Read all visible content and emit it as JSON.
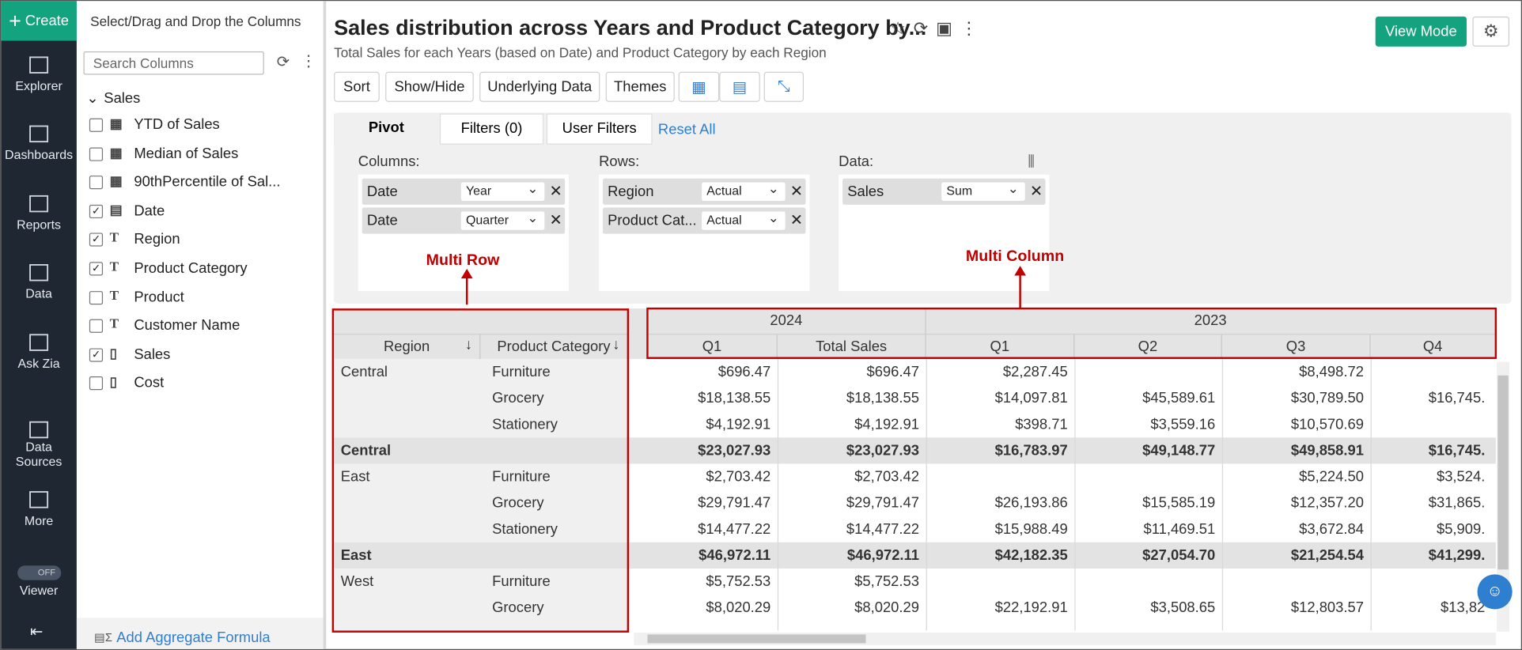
{
  "nav": {
    "create": "Create",
    "items": [
      "Explorer",
      "Dashboards",
      "Reports",
      "Data",
      "Ask Zia",
      "Data Sources",
      "More"
    ],
    "toggle": "OFF",
    "viewer": "Viewer"
  },
  "columns_panel": {
    "title": "Select/Drag and Drop the Columns",
    "search": "Search Columns",
    "group": "Sales",
    "columns": [
      {
        "label": "YTD of Sales",
        "checked": false,
        "kind": "measure"
      },
      {
        "label": "Median of Sales",
        "checked": false,
        "kind": "measure"
      },
      {
        "label": "90thPercentile of Sal...",
        "checked": false,
        "kind": "measure"
      },
      {
        "label": "Date",
        "checked": true,
        "kind": "date"
      },
      {
        "label": "Region",
        "checked": true,
        "kind": "text"
      },
      {
        "label": "Product Category",
        "checked": true,
        "kind": "text"
      },
      {
        "label": "Product",
        "checked": false,
        "kind": "text"
      },
      {
        "label": "Customer Name",
        "checked": false,
        "kind": "text"
      },
      {
        "label": "Sales",
        "checked": true,
        "kind": "number"
      },
      {
        "label": "Cost",
        "checked": false,
        "kind": "number"
      }
    ],
    "footer": "Add Aggregate Formula"
  },
  "header": {
    "title": "Sales distribution across Years and Product Category by...",
    "subtitle": "Total Sales for each Years (based on Date) and Product Category by each Region",
    "view_mode": "View Mode"
  },
  "toolbar": [
    "Sort",
    "Show/Hide",
    "Underlying Data",
    "Themes"
  ],
  "tabs": {
    "pivot": "Pivot",
    "filters": "Filters  (0)",
    "user_filters": "User Filters",
    "reset": "Reset All"
  },
  "shelves": [
    {
      "label": "Columns:",
      "items": [
        {
          "field": "Date",
          "option": "Year"
        },
        {
          "field": "Date",
          "option": "Quarter"
        }
      ]
    },
    {
      "label": "Rows:",
      "items": [
        {
          "field": "Region",
          "option": "Actual"
        },
        {
          "field": "Product Cat...",
          "option": "Actual"
        }
      ]
    },
    {
      "label": "Data:",
      "items": [
        {
          "field": "Sales",
          "option": "Sum"
        }
      ]
    }
  ],
  "annotations": {
    "multi_row": "Multi Row",
    "multi_column": "Multi Column"
  },
  "table": {
    "years": [
      "2024",
      "2023"
    ],
    "headers": [
      "Region",
      "Product Category",
      "Q1",
      "Total Sales",
      "Q1",
      "Q2",
      "Q3",
      "Q4"
    ],
    "rows": [
      {
        "region": "Central",
        "category": "Furniture",
        "cells": [
          "$696.47",
          "$696.47",
          "$2,287.45",
          null,
          "$8,498.72",
          null
        ],
        "subtotal": false
      },
      {
        "region": null,
        "category": "Grocery",
        "cells": [
          "$18,138.55",
          "$18,138.55",
          "$14,097.81",
          "$45,589.61",
          "$30,789.50",
          "$16,745."
        ],
        "subtotal": false
      },
      {
        "region": null,
        "category": "Stationery",
        "cells": [
          "$4,192.91",
          "$4,192.91",
          "$398.71",
          "$3,559.16",
          "$10,570.69",
          null
        ],
        "subtotal": false
      },
      {
        "region": "Central",
        "category": null,
        "cells": [
          "$23,027.93",
          "$23,027.93",
          "$16,783.97",
          "$49,148.77",
          "$49,858.91",
          "$16,745."
        ],
        "subtotal": true
      },
      {
        "region": "East",
        "category": "Furniture",
        "cells": [
          "$2,703.42",
          "$2,703.42",
          null,
          null,
          "$5,224.50",
          "$3,524."
        ],
        "subtotal": false
      },
      {
        "region": null,
        "category": "Grocery",
        "cells": [
          "$29,791.47",
          "$29,791.47",
          "$26,193.86",
          "$15,585.19",
          "$12,357.20",
          "$31,865."
        ],
        "subtotal": false
      },
      {
        "region": null,
        "category": "Stationery",
        "cells": [
          "$14,477.22",
          "$14,477.22",
          "$15,988.49",
          "$11,469.51",
          "$3,672.84",
          "$5,909."
        ],
        "subtotal": false
      },
      {
        "region": "East",
        "category": null,
        "cells": [
          "$46,972.11",
          "$46,972.11",
          "$42,182.35",
          "$27,054.70",
          "$21,254.54",
          "$41,299."
        ],
        "subtotal": true
      },
      {
        "region": "West",
        "category": "Furniture",
        "cells": [
          "$5,752.53",
          "$5,752.53",
          null,
          null,
          null,
          null
        ],
        "subtotal": false
      },
      {
        "region": null,
        "category": "Grocery",
        "cells": [
          "$8,020.29",
          "$8,020.29",
          "$22,192.91",
          "$3,508.65",
          "$12,803.57",
          "$13,82"
        ],
        "subtotal": false
      }
    ]
  }
}
